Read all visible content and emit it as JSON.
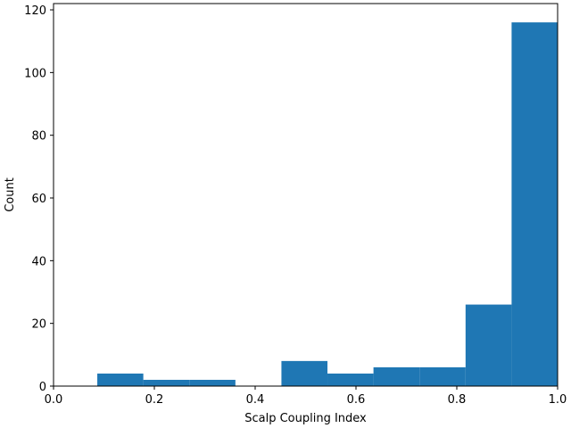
{
  "chart_data": {
    "type": "bar",
    "title": "",
    "xlabel": "Scalp Coupling Index",
    "ylabel": "Count",
    "xlim": [
      0.0,
      1.0
    ],
    "ylim": [
      0,
      122
    ],
    "xticks": [
      0.0,
      0.2,
      0.4,
      0.6,
      0.8,
      1.0
    ],
    "xtick_labels": [
      "0.0",
      "0.2",
      "0.4",
      "0.6",
      "0.8",
      "1.0"
    ],
    "yticks": [
      0,
      20,
      40,
      60,
      80,
      100,
      120
    ],
    "ytick_labels": [
      "0",
      "20",
      "40",
      "60",
      "80",
      "100",
      "120"
    ],
    "grid": false,
    "bar_color": "#1f77b4",
    "bins": [
      {
        "x0": 0.0868,
        "x1": 0.1781,
        "count": 4
      },
      {
        "x0": 0.1781,
        "x1": 0.2695,
        "count": 2
      },
      {
        "x0": 0.2695,
        "x1": 0.3608,
        "count": 2
      },
      {
        "x0": 0.3608,
        "x1": 0.4521,
        "count": 0
      },
      {
        "x0": 0.4521,
        "x1": 0.5434,
        "count": 8
      },
      {
        "x0": 0.5434,
        "x1": 0.6347,
        "count": 4
      },
      {
        "x0": 0.6347,
        "x1": 0.726,
        "count": 6
      },
      {
        "x0": 0.726,
        "x1": 0.8174,
        "count": 6
      },
      {
        "x0": 0.8174,
        "x1": 0.9087,
        "count": 26
      },
      {
        "x0": 0.9087,
        "x1": 1.0,
        "count": 116
      }
    ]
  }
}
